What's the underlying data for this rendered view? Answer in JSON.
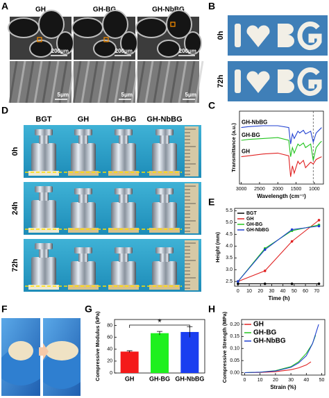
{
  "panel_letters": [
    "A",
    "B",
    "C",
    "D",
    "E",
    "F",
    "G",
    "H"
  ],
  "photos": {
    "sem": {
      "columns": [
        "GH",
        "GH-BG",
        "GH-NbBG"
      ],
      "scale_bars_top": [
        "200μm",
        "200μm",
        "200μm"
      ],
      "scale_bars_bottom": [
        "5μm",
        "5μm",
        "5μm"
      ]
    },
    "shapes": {
      "rows": [
        "0h",
        "72h"
      ]
    },
    "weights": {
      "columns": [
        "BGT",
        "GH",
        "GH-BG",
        "GH-NbBG"
      ],
      "rows": [
        "0h",
        "24h",
        "72h"
      ]
    }
  },
  "chart_data": [
    {
      "type": "line",
      "xlabel": "Wavelength (cm⁻¹)",
      "ylabel": "Transmittance (a.u.)",
      "x": [
        3000,
        2800,
        2400,
        2000,
        1700,
        1650,
        1600,
        1550,
        1450,
        1400,
        1300,
        1240,
        1100,
        1030,
        950,
        850,
        800
      ],
      "xlim": [
        3050,
        750
      ],
      "xticks": [
        3000,
        2500,
        2000,
        1500,
        1000
      ],
      "ylim": [
        0,
        80
      ],
      "legend": "inline",
      "reference_x": 1030,
      "series": [
        {
          "name": "GH-NbBG",
          "color": "#1f3fd1",
          "values": [
            62,
            63,
            64,
            64,
            62,
            44,
            55,
            50,
            58,
            56,
            59,
            55,
            58,
            46,
            56,
            60,
            62
          ]
        },
        {
          "name": "GH-BG",
          "color": "#22c41e",
          "values": [
            48,
            49,
            50,
            51,
            48,
            30,
            40,
            34,
            44,
            42,
            45,
            40,
            44,
            26,
            40,
            45,
            47
          ]
        },
        {
          "name": "GH",
          "color": "#e02020",
          "values": [
            30,
            31,
            33,
            34,
            31,
            8,
            20,
            12,
            25,
            22,
            26,
            18,
            24,
            22,
            27,
            29,
            30
          ]
        }
      ]
    },
    {
      "type": "line",
      "xlabel": "Time (h)",
      "ylabel": "Height (mm)",
      "x": [
        0,
        24,
        48,
        72
      ],
      "xlim": [
        -3,
        76
      ],
      "xticks": [
        0,
        10,
        20,
        30,
        40,
        50,
        60,
        70
      ],
      "ylim": [
        2.3,
        5.6
      ],
      "yticks": [
        2.5,
        {
          "value": 3,
          "label": "3.0"
        },
        3.5,
        {
          "value": 4,
          "label": "4.0"
        },
        4.5,
        {
          "value": 5,
          "label": "5.0"
        },
        5.5
      ],
      "legend": "upper left",
      "markers": true,
      "series": [
        {
          "name": "BGT",
          "color": "#000000",
          "values": [
            2.4,
            2.4,
            2.4,
            2.4
          ]
        },
        {
          "name": "GH",
          "color": "#e02020",
          "values": [
            2.5,
            2.95,
            4.2,
            5.1
          ]
        },
        {
          "name": "GH-BG",
          "color": "#22c41e",
          "values": [
            2.5,
            3.9,
            4.65,
            4.9
          ]
        },
        {
          "name": "GH-NbBG",
          "color": "#1f3fd1",
          "values": [
            2.5,
            3.85,
            4.7,
            4.85
          ]
        }
      ]
    },
    {
      "type": "bar",
      "ylabel": "Compressive Modulus (kPa)",
      "categories": [
        "GH",
        "GH-BG",
        "GH-NbBG"
      ],
      "values": [
        36,
        67,
        69
      ],
      "errors": [
        1.5,
        3,
        9
      ],
      "colors": [
        "#f41a1a",
        "#1ef01e",
        "#1a3ef0"
      ],
      "ylim": [
        0,
        90
      ],
      "yticks": [
        0,
        20,
        40,
        60,
        80
      ],
      "annotation": "*"
    },
    {
      "type": "line",
      "xlabel": "Strain (%)",
      "ylabel": "Compressive Strength (MPa)",
      "xlim": [
        -2,
        52
      ],
      "xticks": [
        0,
        10,
        20,
        30,
        40,
        50
      ],
      "ylim": [
        -0.01,
        0.22
      ],
      "yticks": [
        {
          "value": 0,
          "label": "0.00"
        },
        {
          "value": 0.05,
          "label": "0.05"
        },
        {
          "value": 0.1,
          "label": "0.10"
        },
        {
          "value": 0.15,
          "label": "0.15"
        },
        {
          "value": 0.2,
          "label": "0.20"
        }
      ],
      "legend": "upper left",
      "series": [
        {
          "name": "GH",
          "color": "#e02020",
          "x": [
            0,
            10,
            20,
            30,
            35,
            40,
            43
          ],
          "values": [
            0,
            0.001,
            0.004,
            0.012,
            0.02,
            0.032,
            0.045
          ]
        },
        {
          "name": "GH-BG",
          "color": "#22c41e",
          "x": [
            0,
            10,
            20,
            30,
            35,
            40,
            44,
            46
          ],
          "values": [
            0,
            0.002,
            0.008,
            0.025,
            0.045,
            0.08,
            0.12,
            0.155
          ]
        },
        {
          "name": "GH-NbBG",
          "color": "#1f3fd1",
          "x": [
            0,
            10,
            20,
            30,
            35,
            40,
            44,
            47,
            48
          ],
          "values": [
            0,
            0.002,
            0.007,
            0.022,
            0.04,
            0.07,
            0.12,
            0.18,
            0.2
          ]
        }
      ]
    }
  ]
}
